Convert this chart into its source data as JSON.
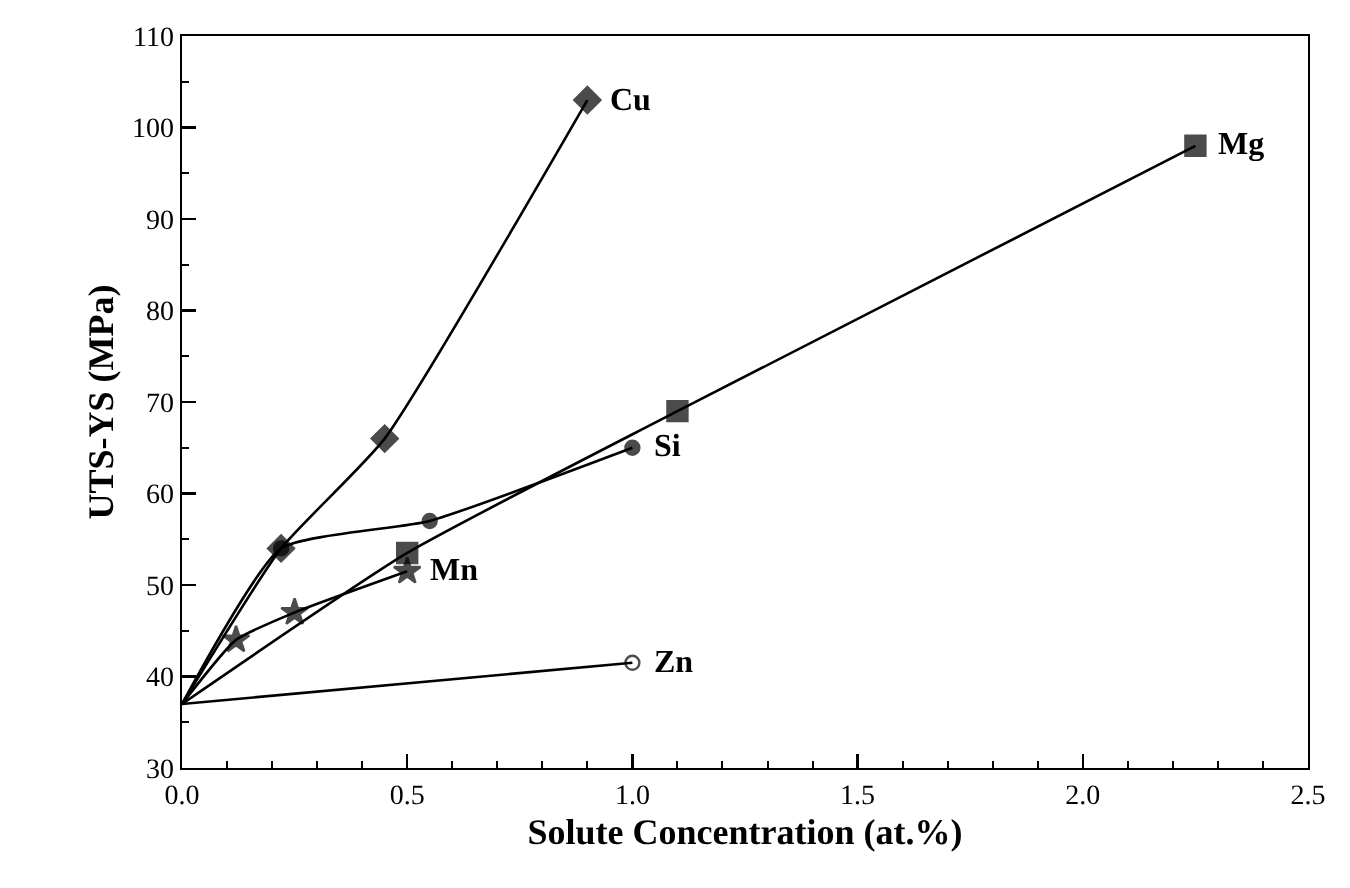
{
  "chart_data": {
    "type": "line",
    "xlabel": "Solute Concentration (at.%)",
    "ylabel": "UTS-YS (MPa)",
    "xlim": [
      0,
      2.5
    ],
    "ylim": [
      30,
      110
    ],
    "xticks": [
      {
        "value": 0,
        "label": "0.0"
      },
      {
        "value": 0.1,
        "label": null
      },
      {
        "value": 0.2,
        "label": null
      },
      {
        "value": 0.3,
        "label": null
      },
      {
        "value": 0.4,
        "label": null
      },
      0.5,
      {
        "value": 0.6,
        "label": null
      },
      {
        "value": 0.7,
        "label": null
      },
      {
        "value": 0.8,
        "label": null
      },
      {
        "value": 0.9,
        "label": null
      },
      {
        "value": 1,
        "label": "1.0"
      },
      {
        "value": 1.1,
        "label": null
      },
      {
        "value": 1.2,
        "label": null
      },
      {
        "value": 1.3,
        "label": null
      },
      {
        "value": 1.4,
        "label": null
      },
      1.5,
      {
        "value": 1.6,
        "label": null
      },
      {
        "value": 1.7,
        "label": null
      },
      {
        "value": 1.8,
        "label": null
      },
      {
        "value": 1.9,
        "label": null
      },
      {
        "value": 2,
        "label": "2.0"
      },
      {
        "value": 2.1,
        "label": null
      },
      {
        "value": 2.2,
        "label": null
      },
      {
        "value": 2.3,
        "label": null
      },
      {
        "value": 2.4,
        "label": null
      },
      2.5
    ],
    "yticks": [
      30,
      {
        "value": 35,
        "label": null
      },
      40,
      {
        "value": 45,
        "label": null
      },
      50,
      {
        "value": 55,
        "label": null
      },
      60,
      {
        "value": 65,
        "label": null
      },
      70,
      {
        "value": 75,
        "label": null
      },
      80,
      {
        "value": 85,
        "label": null
      },
      90,
      {
        "value": 95,
        "label": null
      },
      100,
      {
        "value": 105,
        "label": null
      },
      110
    ],
    "grid": false,
    "legend": false,
    "line_style": "solid",
    "series": [
      {
        "name": "Cu",
        "color": "#000000",
        "marker": "diamond",
        "x": [
          0,
          0.22,
          0.45,
          0.9
        ],
        "values": [
          37,
          54,
          66,
          103
        ]
      },
      {
        "name": "Mg",
        "color": "#000000",
        "marker": "square",
        "x": [
          0,
          0.5,
          1.1,
          2.25
        ],
        "values": [
          37,
          53.5,
          69,
          98
        ]
      },
      {
        "name": "Si",
        "color": "#000000",
        "marker": "circle",
        "x": [
          0,
          0.22,
          0.55,
          1.0
        ],
        "values": [
          37,
          54,
          57,
          65
        ]
      },
      {
        "name": "Mn",
        "color": "#000000",
        "marker": "star",
        "x": [
          0,
          0.12,
          0.25,
          0.5
        ],
        "values": [
          37,
          44,
          47,
          51.5
        ]
      },
      {
        "name": "Zn",
        "color": "#000000",
        "marker": "circle-open",
        "x": [
          0,
          1.0
        ],
        "values": [
          37,
          41.5
        ]
      }
    ]
  }
}
